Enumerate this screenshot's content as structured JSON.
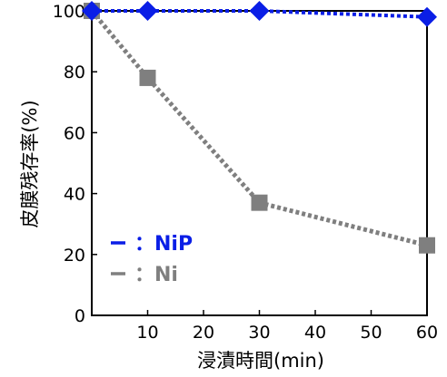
{
  "chart_data": {
    "type": "line",
    "xlabel": "浸漬時間(min)",
    "ylabel": "皮膜残存率(%)",
    "x_tick_labels": [
      "10",
      "20",
      "30",
      "40",
      "50",
      "60"
    ],
    "y_tick_labels": [
      "0",
      "20",
      "40",
      "60",
      "80",
      "100"
    ],
    "xlim": [
      0,
      60
    ],
    "ylim": [
      0,
      100
    ],
    "x_ticks": [
      10,
      20,
      30,
      40,
      50,
      60
    ],
    "y_ticks": [
      0,
      20,
      40,
      60,
      80,
      100
    ],
    "grid": false,
    "legend_position": "bottom-left",
    "series": [
      {
        "name": "：NiP",
        "color": "#0a1ee6",
        "marker": "diamond",
        "x": [
          0,
          10,
          30,
          60
        ],
        "y": [
          100,
          100,
          100,
          98
        ]
      },
      {
        "name": "：Ni",
        "color": "#7f7f7f",
        "marker": "square",
        "x": [
          0,
          10,
          30,
          60
        ],
        "y": [
          100,
          78,
          37,
          23
        ]
      }
    ]
  }
}
